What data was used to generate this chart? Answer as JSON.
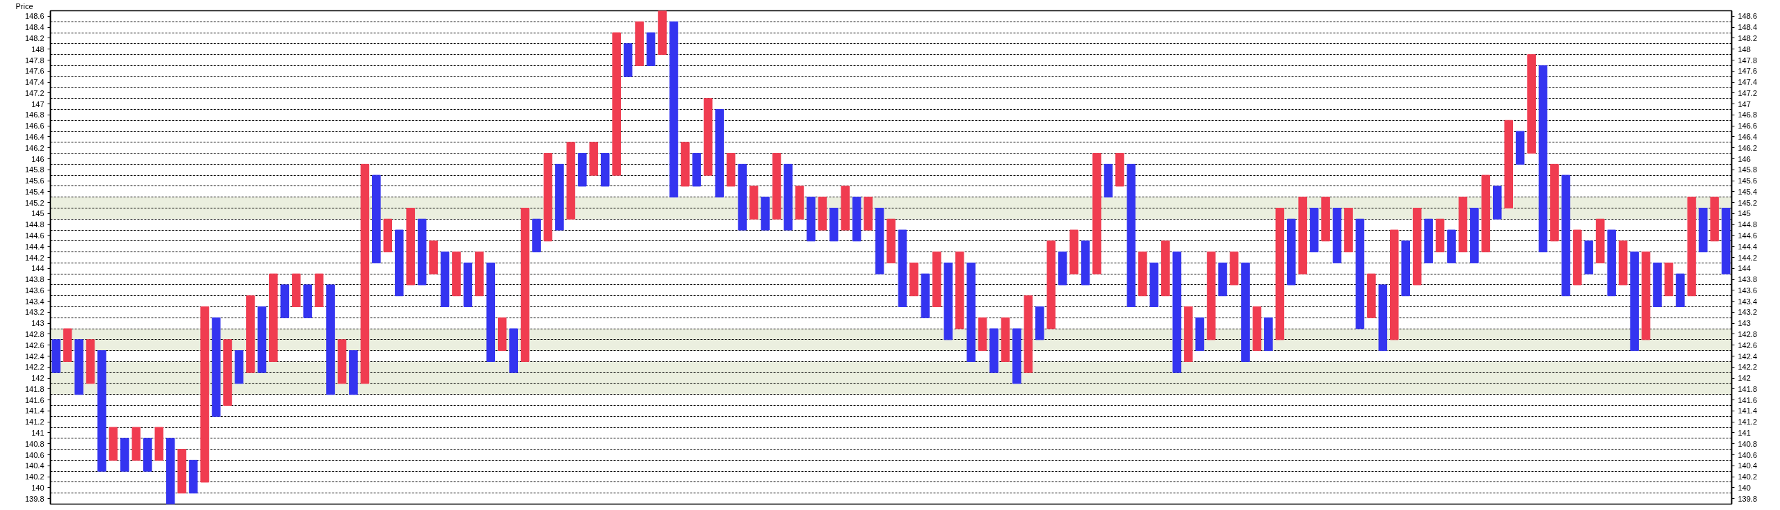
{
  "chart_data": {
    "type": "bar",
    "ylabel": "Price",
    "categories": [
      null,
      null,
      null,
      null,
      null,
      null,
      null,
      null,
      null,
      null,
      null,
      null,
      null,
      null,
      null,
      null,
      null,
      null,
      null,
      null,
      null,
      null,
      null,
      null,
      null,
      null,
      null,
      null,
      null,
      null,
      null,
      null,
      null,
      null,
      null,
      null,
      null,
      null,
      null,
      null,
      null,
      null,
      null,
      null,
      null,
      null,
      null,
      null,
      null,
      null,
      null,
      null,
      null,
      null,
      null,
      null,
      null,
      null,
      null,
      null,
      null,
      null,
      null,
      null,
      null,
      null,
      null,
      null,
      null,
      null,
      null,
      null,
      null,
      null,
      null,
      null,
      null,
      null,
      null,
      null,
      null,
      null,
      null,
      null,
      null,
      null,
      null,
      null,
      null,
      null,
      null,
      null,
      null,
      null,
      null,
      null,
      null,
      null,
      null,
      null,
      null,
      null,
      null,
      null,
      null,
      null,
      null,
      null,
      null,
      null,
      null,
      null,
      null,
      null,
      null,
      null,
      null,
      null,
      null,
      null,
      null,
      null,
      null,
      null,
      null,
      null,
      null,
      null,
      null,
      null,
      null,
      null,
      null,
      null,
      null,
      null,
      null,
      null,
      null,
      null,
      null,
      null,
      null,
      null,
      null,
      null,
      null
    ],
    "ylim": [
      139.7,
      148.7
    ],
    "y2lim": [
      139.7,
      148.7
    ],
    "yticks": [
      148.6,
      148.4,
      148.2,
      148,
      147.8,
      147.6,
      147.4,
      147.2,
      147,
      146.8,
      146.6,
      146.4,
      146.2,
      146,
      145.8,
      145.6,
      145.4,
      145.2,
      145,
      144.8,
      144.6,
      144.4,
      144.2,
      144,
      143.8,
      143.6,
      143.4,
      143.2,
      143,
      142.8,
      142.6,
      142.4,
      142.2,
      142,
      141.8,
      141.6,
      141.4,
      141.2,
      141,
      140.8,
      140.6,
      140.4,
      140.2,
      140,
      139.8
    ],
    "y2ticks": [
      148.6,
      148.4,
      148.2,
      148,
      147.8,
      147.6,
      147.4,
      147.2,
      147,
      146.8,
      146.6,
      146.4,
      146.2,
      146,
      145.8,
      145.6,
      145.4,
      145.2,
      145,
      144.8,
      144.6,
      144.4,
      144.2,
      144,
      143.8,
      143.6,
      143.4,
      143.2,
      143,
      142.8,
      142.6,
      142.4,
      142.2,
      142,
      141.8,
      141.6,
      141.4,
      141.2,
      141,
      140.8,
      140.6,
      140.4,
      140.2,
      140,
      139.8
    ],
    "tick_labels": "y",
    "grid": "y",
    "bands": [
      {
        "axis": "y",
        "from": 141.7,
        "to": 142.3,
        "color": "#ebefdf"
      },
      {
        "axis": "y",
        "from": 142.5,
        "to": 142.9,
        "color": "#ebefdf"
      },
      {
        "axis": "y",
        "from": 144.9,
        "to": 145.3,
        "color": "#ebefdf"
      }
    ],
    "series": [
      {
        "color": "#f03c50",
        "base": [
          null,
          142.3,
          null,
          141.9,
          null,
          140.5,
          null,
          140.5,
          null,
          140.5,
          null,
          139.9,
          null,
          140.1,
          null,
          141.5,
          null,
          142.1,
          null,
          142.3,
          null,
          143.3,
          null,
          143.3,
          null,
          141.9,
          null,
          141.9,
          null,
          144.3,
          null,
          143.7,
          null,
          143.9,
          null,
          143.5,
          null,
          143.5,
          null,
          142.5,
          null,
          142.3,
          null,
          144.5,
          null,
          144.9,
          null,
          145.7,
          null,
          145.7,
          null,
          147.7,
          null,
          147.9,
          null,
          145.5,
          null,
          145.7,
          null,
          145.5,
          null,
          144.9,
          null,
          144.9,
          null,
          144.9,
          null,
          144.7,
          null,
          144.7,
          null,
          144.7,
          null,
          144.1,
          null,
          143.5,
          null,
          143.3,
          null,
          142.9,
          null,
          142.5,
          null,
          142.3,
          null,
          142.1,
          null,
          142.9,
          null,
          143.9,
          null,
          143.9,
          null,
          145.5,
          null,
          143.5,
          null,
          143.5,
          null,
          142.3,
          null,
          142.7,
          null,
          143.7,
          null,
          142.5,
          null,
          142.7,
          null,
          143.9,
          null,
          144.5,
          null,
          144.3,
          null,
          143.1,
          null,
          142.7,
          null,
          143.7,
          null,
          144.3,
          null,
          144.3,
          null,
          144.3,
          null,
          145.1,
          null,
          146.1,
          null,
          144.5,
          null,
          143.7,
          null,
          144.1,
          null,
          143.7,
          null,
          142.7,
          null,
          143.5,
          null,
          143.5,
          null,
          144.5,
          null
        ],
        "values": [
          null,
          0.6,
          null,
          0.8,
          null,
          0.6,
          null,
          0.6,
          null,
          0.6,
          null,
          0.8,
          null,
          3.2,
          null,
          1.2,
          null,
          1.4,
          null,
          1.6,
          null,
          0.6,
          null,
          0.6,
          null,
          0.8,
          null,
          4.0,
          null,
          0.6,
          null,
          1.4,
          null,
          0.6,
          null,
          0.8,
          null,
          0.8,
          null,
          0.6,
          null,
          2.8,
          null,
          1.6,
          null,
          1.4,
          null,
          0.6,
          null,
          2.6,
          null,
          0.8,
          null,
          0.8,
          null,
          0.8,
          null,
          1.4,
          null,
          0.6,
          null,
          0.6,
          null,
          1.2,
          null,
          0.6,
          null,
          0.6,
          null,
          0.8,
          null,
          0.6,
          null,
          0.8,
          null,
          0.6,
          null,
          1.0,
          null,
          1.4,
          null,
          0.6,
          null,
          0.8,
          null,
          1.4,
          null,
          1.6,
          null,
          0.8,
          null,
          2.2,
          null,
          0.6,
          null,
          0.8,
          null,
          1.0,
          null,
          1.0,
          null,
          1.6,
          null,
          0.6,
          null,
          0.8,
          null,
          2.4,
          null,
          1.4,
          null,
          0.8,
          null,
          0.8,
          null,
          0.8,
          null,
          2.0,
          null,
          1.4,
          null,
          0.6,
          null,
          1.0,
          null,
          1.4,
          null,
          1.6,
          null,
          1.8,
          null,
          1.4,
          null,
          1.0,
          null,
          0.8,
          null,
          0.8,
          null,
          1.6,
          null,
          0.6,
          null,
          1.8,
          null,
          0.8,
          null
        ]
      },
      {
        "color": "#3434f0",
        "base": [
          142.1,
          null,
          141.7,
          null,
          140.3,
          null,
          140.3,
          null,
          140.3,
          null,
          139.7,
          null,
          139.9,
          null,
          141.3,
          null,
          141.9,
          null,
          142.1,
          null,
          143.1,
          null,
          143.1,
          null,
          141.7,
          null,
          141.7,
          null,
          144.1,
          null,
          143.5,
          null,
          143.7,
          null,
          143.3,
          null,
          143.3,
          null,
          142.3,
          null,
          142.1,
          null,
          144.3,
          null,
          144.7,
          null,
          145.5,
          null,
          145.5,
          null,
          147.5,
          null,
          147.7,
          null,
          145.3,
          null,
          145.5,
          null,
          145.3,
          null,
          144.7,
          null,
          144.7,
          null,
          144.7,
          null,
          144.5,
          null,
          144.5,
          null,
          144.5,
          null,
          143.9,
          null,
          143.3,
          null,
          143.1,
          null,
          142.7,
          null,
          142.3,
          null,
          142.1,
          null,
          141.9,
          null,
          142.7,
          null,
          143.7,
          null,
          143.7,
          null,
          145.3,
          null,
          143.3,
          null,
          143.3,
          null,
          142.1,
          null,
          142.5,
          null,
          143.5,
          null,
          142.3,
          null,
          142.5,
          null,
          143.7,
          null,
          144.3,
          null,
          144.1,
          null,
          142.9,
          null,
          142.5,
          null,
          143.5,
          null,
          144.1,
          null,
          144.1,
          null,
          144.1,
          null,
          144.9,
          null,
          145.9,
          null,
          144.3,
          null,
          143.5,
          null,
          143.9,
          null,
          143.5,
          null,
          142.5,
          null,
          143.3,
          null,
          143.3,
          null,
          144.3,
          null,
          143.9
        ],
        "values": [
          0.6,
          null,
          1.0,
          null,
          2.2,
          null,
          0.6,
          null,
          0.6,
          null,
          1.2,
          null,
          0.6,
          null,
          1.8,
          null,
          0.6,
          null,
          1.2,
          null,
          0.6,
          null,
          0.6,
          null,
          2.0,
          null,
          0.8,
          null,
          1.6,
          null,
          1.2,
          null,
          1.2,
          null,
          1.0,
          null,
          0.8,
          null,
          1.8,
          null,
          0.8,
          null,
          0.6,
          null,
          1.2,
          null,
          0.6,
          null,
          0.6,
          null,
          0.6,
          null,
          0.6,
          null,
          3.2,
          null,
          0.6,
          null,
          1.6,
          null,
          1.2,
          null,
          0.6,
          null,
          1.2,
          null,
          0.8,
          null,
          0.6,
          null,
          0.8,
          null,
          1.2,
          null,
          1.4,
          null,
          0.8,
          null,
          1.4,
          null,
          1.8,
          null,
          0.8,
          null,
          1.0,
          null,
          0.6,
          null,
          0.6,
          null,
          0.8,
          null,
          0.6,
          null,
          2.6,
          null,
          0.8,
          null,
          2.2,
          null,
          0.6,
          null,
          0.6,
          null,
          1.8,
          null,
          0.6,
          null,
          1.2,
          null,
          0.8,
          null,
          1.0,
          null,
          2.0,
          null,
          1.2,
          null,
          1.0,
          null,
          0.8,
          null,
          0.6,
          null,
          1.0,
          null,
          0.6,
          null,
          0.6,
          null,
          3.4,
          null,
          2.2,
          null,
          0.6,
          null,
          1.2,
          null,
          1.8,
          null,
          0.8,
          null,
          0.6,
          null,
          0.8,
          null,
          1.2
        ]
      }
    ]
  }
}
